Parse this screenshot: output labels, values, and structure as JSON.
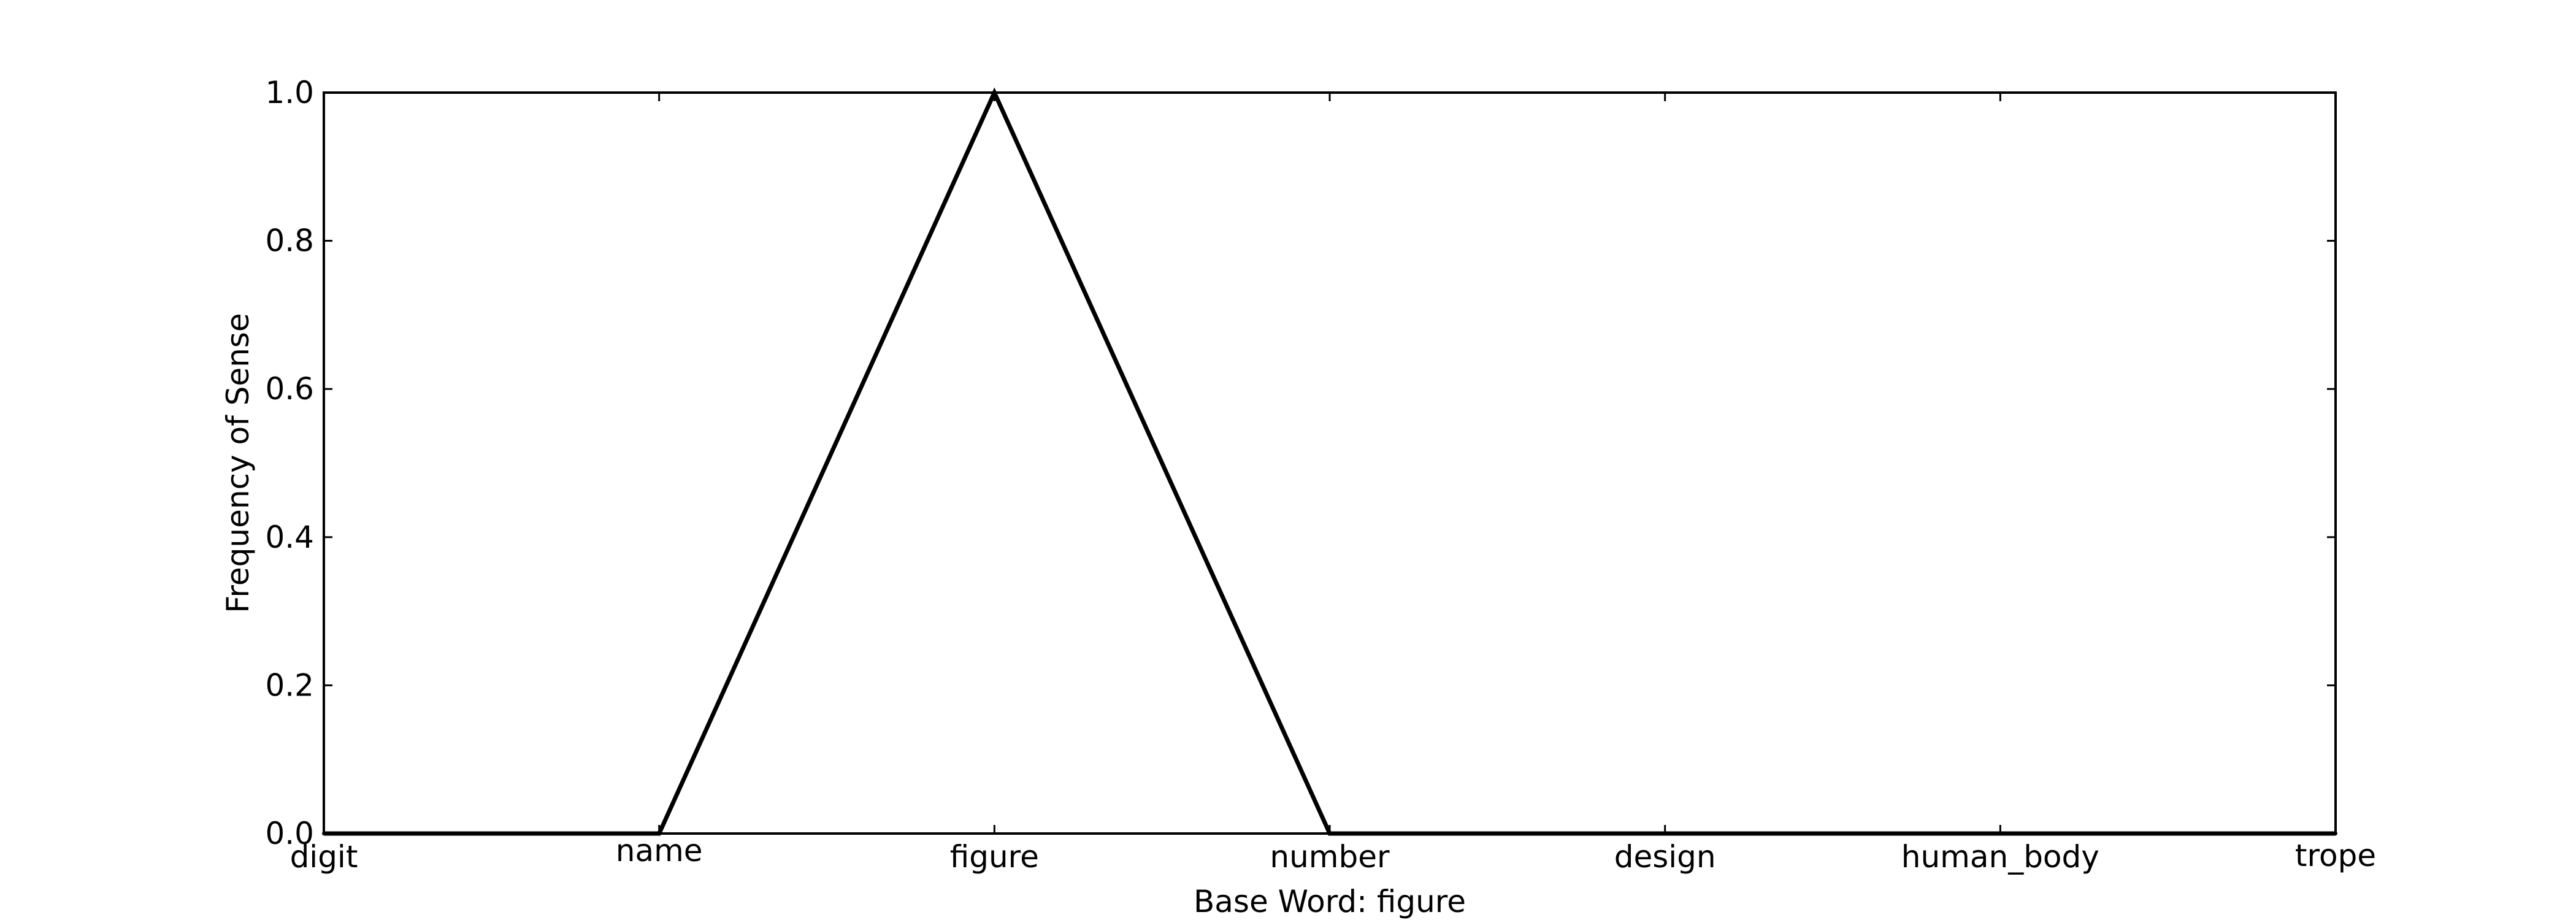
{
  "chart_data": {
    "type": "line",
    "title": "",
    "xlabel": "Base Word: figure",
    "ylabel": "Frequency of Sense",
    "categories": [
      "digit",
      "name",
      "figure",
      "number",
      "design",
      "human_body",
      "trope"
    ],
    "series": [
      {
        "values": [
          0.0,
          0.0,
          1.0,
          0.0,
          0.0,
          0.0,
          0.0
        ],
        "color": "#000000"
      }
    ],
    "ylim": [
      0.0,
      1.0
    ],
    "yticks": [
      0.0,
      0.2,
      0.4,
      0.6,
      0.8,
      1.0
    ],
    "ytick_labels": [
      "0.0",
      "0.2",
      "0.4",
      "0.6",
      "0.8",
      "1.0"
    ],
    "grid": false,
    "legend": "none"
  }
}
